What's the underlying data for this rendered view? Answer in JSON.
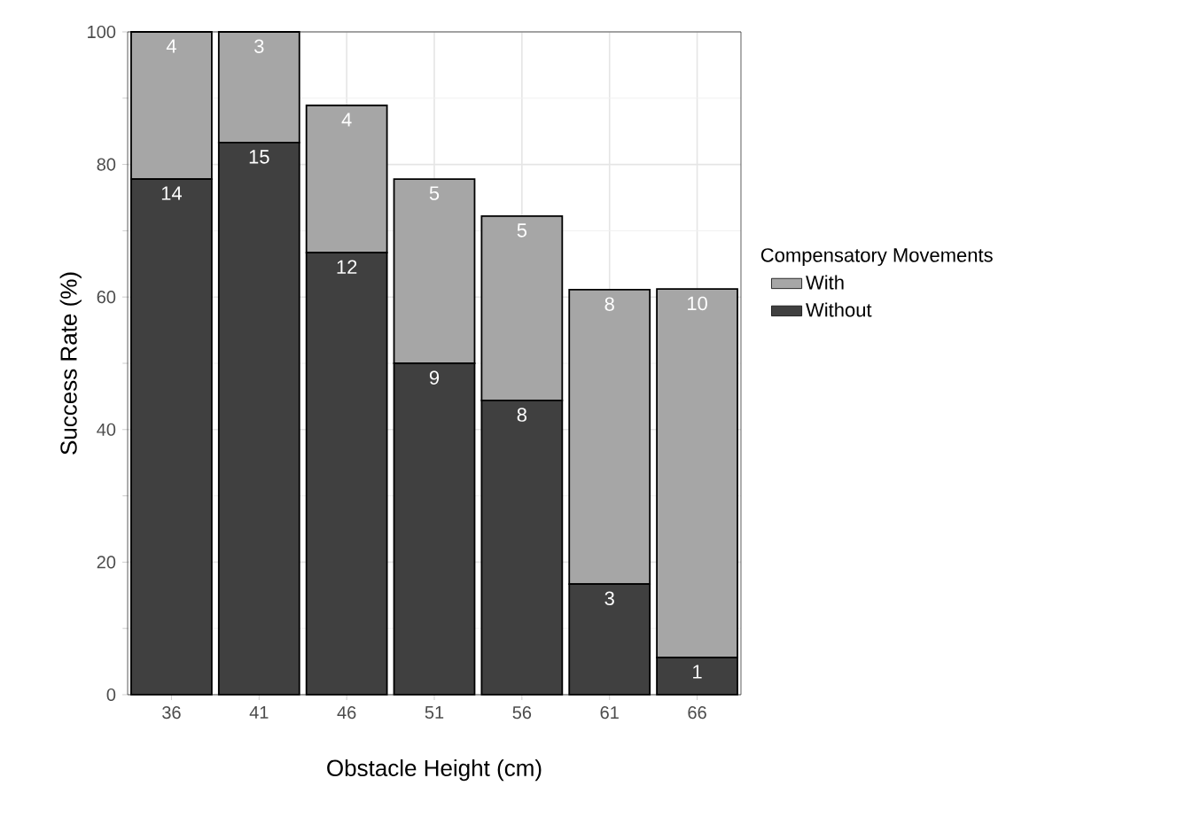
{
  "chart_data": {
    "type": "bar",
    "stacked": true,
    "xlabel": "Obstacle Height (cm)",
    "ylabel": "Success Rate (%)",
    "legend_title": "Compensatory Movements",
    "legend": "right",
    "grid": true,
    "categories": [
      "36",
      "41",
      "46",
      "51",
      "56",
      "61",
      "66"
    ],
    "ylim": [
      0,
      100
    ],
    "yticks": [
      0,
      20,
      40,
      60,
      80,
      100
    ],
    "series": [
      {
        "name": "Without",
        "color": "#404040",
        "values": [
          77.8,
          83.3,
          66.7,
          50.0,
          44.4,
          16.7,
          5.6
        ]
      },
      {
        "name": "With",
        "color": "#a6a6a6",
        "values": [
          22.2,
          16.7,
          22.2,
          27.8,
          27.8,
          44.4,
          55.6
        ]
      }
    ],
    "annotations": [
      {
        "text": "14",
        "x": "36",
        "y": 77.8
      },
      {
        "text": "15",
        "x": "41",
        "y": 83.3
      },
      {
        "text": "12",
        "x": "46",
        "y": 66.7
      },
      {
        "text": "9",
        "x": "51",
        "y": 50.0
      },
      {
        "text": "8",
        "x": "56",
        "y": 44.4
      },
      {
        "text": "3",
        "x": "61",
        "y": 16.7
      },
      {
        "text": "1",
        "x": "66",
        "y": 5.6
      },
      {
        "text": "4",
        "x": "36",
        "y": 100.0
      },
      {
        "text": "3",
        "x": "41",
        "y": 100.0
      },
      {
        "text": "4",
        "x": "46",
        "y": 88.9
      },
      {
        "text": "5",
        "x": "51",
        "y": 77.8
      },
      {
        "text": "5",
        "x": "56",
        "y": 72.2
      },
      {
        "text": "8",
        "x": "61",
        "y": 61.1
      },
      {
        "text": "10",
        "x": "66",
        "y": 61.2
      }
    ]
  }
}
